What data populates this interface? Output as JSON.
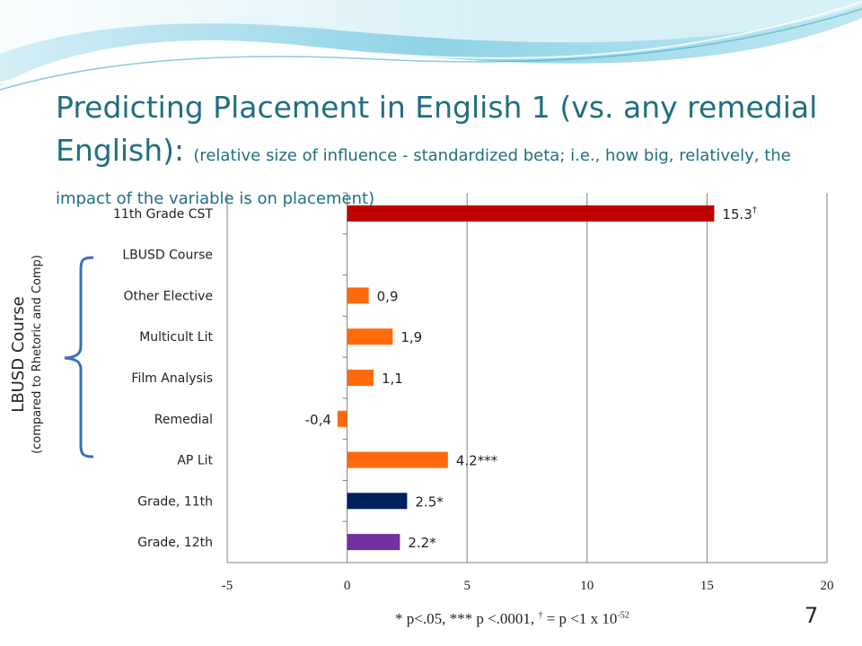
{
  "slide": {
    "title_main": "Predicting Placement in English 1 (vs. any remedial English):",
    "title_sub": "(relative size of influence - standardized beta; i.e., how big, relatively, the impact of the variable is on placement)",
    "group_label": "LBUSD Course",
    "group_sublabel": "(compared to Rhetoric and Comp)",
    "footnote_prefix": "* p<.05, *** p <.0001, ",
    "footnote_dagger": "†",
    "footnote_mid": " = p <1 x 10",
    "footnote_exp": "-52",
    "slide_number": "7"
  },
  "chart_data": {
    "type": "bar",
    "orientation": "horizontal",
    "categories": [
      "11th Grade CST",
      "LBUSD Course",
      "Other Elective",
      "Multicult Lit",
      "Film Analysis",
      "Remedial",
      "AP Lit",
      "Grade, 11th",
      "Grade, 12th"
    ],
    "values": [
      15.3,
      null,
      0.9,
      1.9,
      1.1,
      -0.4,
      4.2,
      2.5,
      2.2
    ],
    "data_labels": [
      "15.3",
      "",
      "0,9",
      "1,9",
      "1,1",
      "-0,4",
      "4.2***",
      "2.5*",
      "2.2*"
    ],
    "data_label_marks": [
      "†",
      "",
      "",
      "",
      "",
      "",
      "",
      "",
      ""
    ],
    "colors": [
      "#c00000",
      "",
      "#ff6a0d",
      "#ff6a0d",
      "#ff6a0d",
      "#ff6a0d",
      "#ff6a0d",
      "#002060",
      "#7030a0"
    ],
    "xlim": [
      -5,
      20
    ],
    "xticks": [
      "-5",
      "0",
      "5",
      "10",
      "15",
      "20"
    ],
    "xtick_values": [
      -5,
      0,
      5,
      10,
      15,
      20
    ],
    "grid": "vertical"
  }
}
